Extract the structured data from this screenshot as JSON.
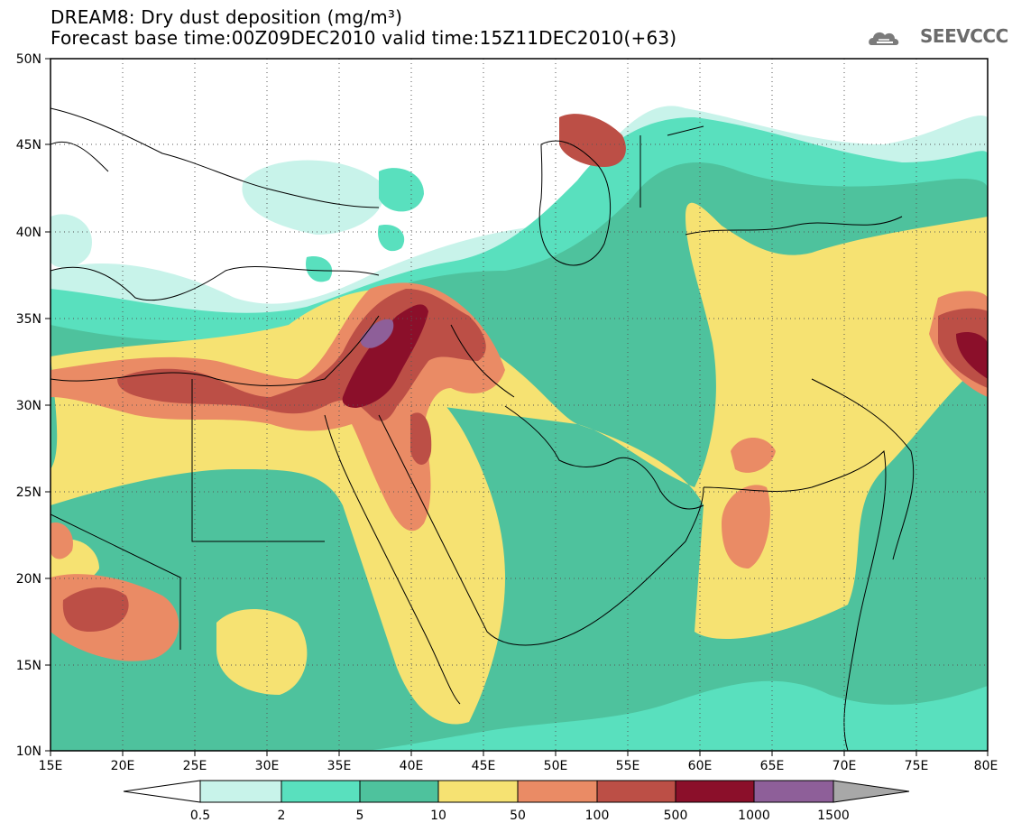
{
  "header": {
    "title_line1": "DREAM8: Dry dust deposition (mg/m³)",
    "title_line2": "Forecast base time:00Z09DEC2010 valid time:15Z11DEC2010(+63)",
    "logo_text": "SEEVCCC"
  },
  "axes": {
    "lon_labels": [
      "15E",
      "20E",
      "25E",
      "30E",
      "35E",
      "40E",
      "45E",
      "50E",
      "55E",
      "60E",
      "65E",
      "70E",
      "75E",
      "80E"
    ],
    "lat_labels": [
      "50N",
      "45N",
      "40N",
      "35N",
      "30N",
      "25N",
      "20N",
      "15N",
      "10N"
    ]
  },
  "colorbar": {
    "labels": [
      "0.5",
      "2",
      "5",
      "10",
      "50",
      "100",
      "500",
      "1000",
      "1500"
    ],
    "colors": [
      "#ffffff",
      "#c8f3ea",
      "#59e0be",
      "#4ec29d",
      "#f6e272",
      "#ea8b65",
      "#bc4f46",
      "#8b0f2a",
      "#8e5f99",
      "#a8a8a8"
    ]
  },
  "colors": {
    "land_line": "#000000",
    "background": "#ffffff"
  }
}
